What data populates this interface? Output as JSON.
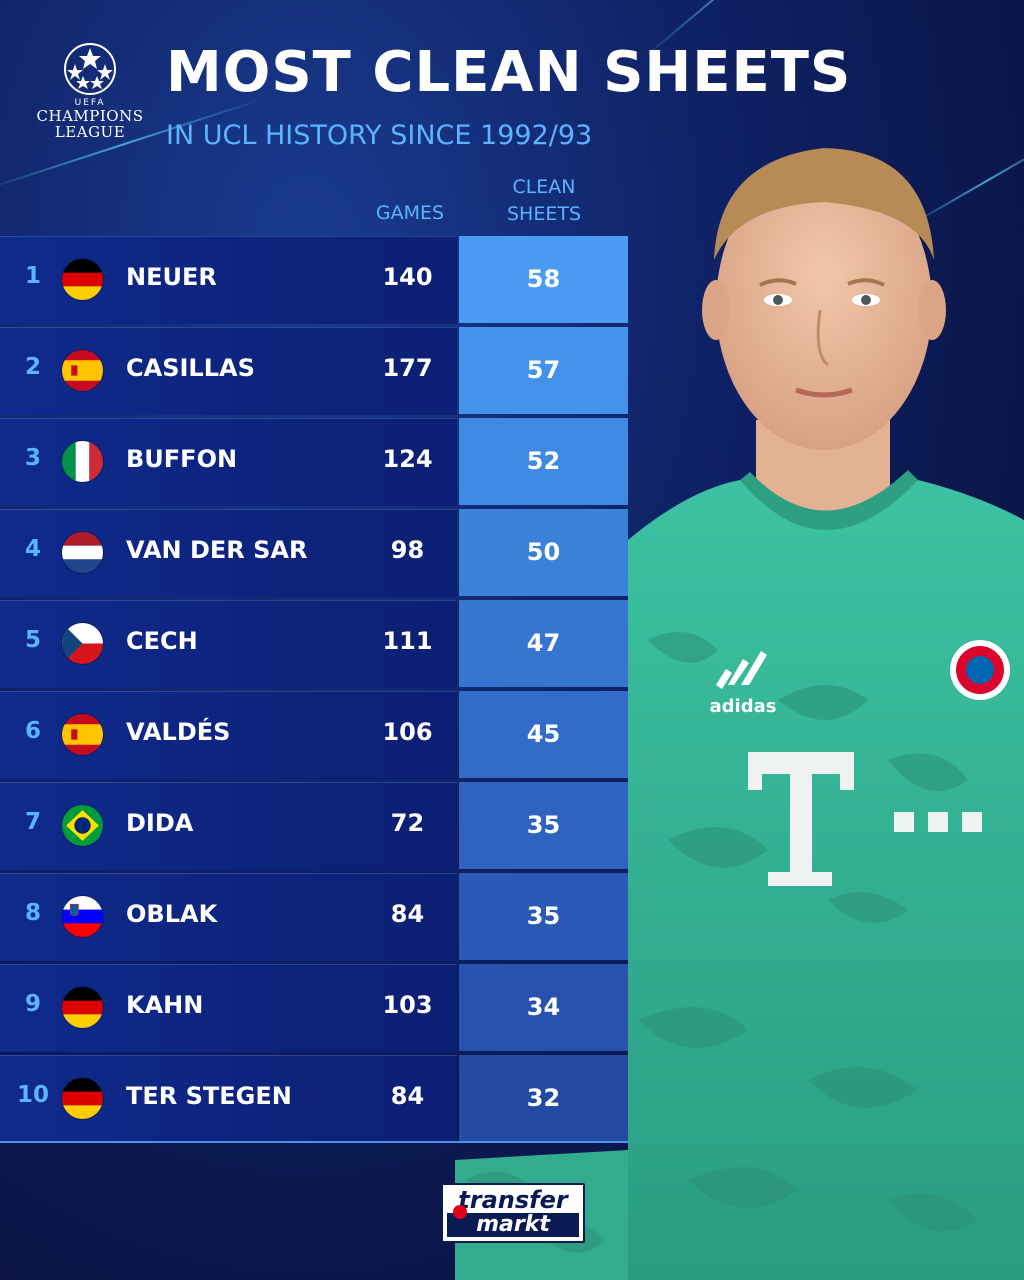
{
  "header": {
    "title": "MOST CLEAN SHEETS",
    "subtitle": "IN UCL HISTORY SINCE 1992/93",
    "logo_small": "UEFA",
    "logo_line1": "CHAMPIONS",
    "logo_line2": "LEAGUE"
  },
  "columns": {
    "games": "GAMES",
    "clean_line1": "CLEAN",
    "clean_line2": "SHEETS"
  },
  "rows": [
    {
      "rank": "1",
      "name": "NEUER",
      "flag": "germany-flag",
      "games": "140",
      "clean": "58"
    },
    {
      "rank": "2",
      "name": "CASILLAS",
      "flag": "spain-flag",
      "games": "177",
      "clean": "57"
    },
    {
      "rank": "3",
      "name": "BUFFON",
      "flag": "italy-flag",
      "games": "124",
      "clean": "52"
    },
    {
      "rank": "4",
      "name": "VAN DER SAR",
      "flag": "netherlands-flag",
      "games": "98",
      "clean": "50"
    },
    {
      "rank": "5",
      "name": "CECH",
      "flag": "czech-flag",
      "games": "111",
      "clean": "47"
    },
    {
      "rank": "6",
      "name": "VALDÉS",
      "flag": "spain-flag",
      "games": "106",
      "clean": "45"
    },
    {
      "rank": "7",
      "name": "DIDA",
      "flag": "brazil-flag",
      "games": "72",
      "clean": "35"
    },
    {
      "rank": "8",
      "name": "OBLAK",
      "flag": "slovenia-flag",
      "games": "84",
      "clean": "35"
    },
    {
      "rank": "9",
      "name": "KAHN",
      "flag": "germany-flag",
      "games": "103",
      "clean": "34"
    },
    {
      "rank": "10",
      "name": "TER STEGEN",
      "flag": "germany-flag",
      "games": "84",
      "clean": "32"
    }
  ],
  "clean_colors": [
    "#4a9cf2",
    "#4592ea",
    "#4089e2",
    "#3b80d9",
    "#3676d0",
    "#336cc8",
    "#2f63bf",
    "#2b5ab6",
    "#2852ad",
    "#244aa4"
  ],
  "jersey_sponsor": "T",
  "jersey_brand": "adidas",
  "source_logo": {
    "line1": "transfer",
    "line2": "markt"
  },
  "colors": {
    "accent": "#5ab4ff",
    "row_dark": "#0b1f73",
    "jersey": "#37b89a"
  }
}
